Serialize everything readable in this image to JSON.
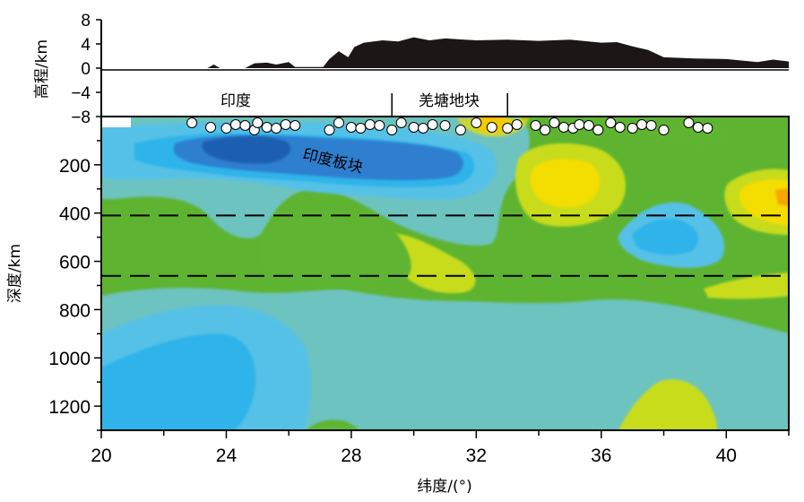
{
  "chart_data": {
    "type": "heatmap",
    "xlabel": "纬度/(°)",
    "ylabel": "深度/km",
    "xlim": [
      20,
      42
    ],
    "ylim": [
      0,
      1300
    ],
    "x_ticks": [
      20,
      24,
      28,
      32,
      36,
      40
    ],
    "y_ticks": [
      200,
      400,
      600,
      800,
      1000,
      1200
    ],
    "dashed_depths": [
      410,
      660
    ],
    "elevation": {
      "ylabel": "高程/km",
      "ylim": [
        -8,
        8
      ],
      "ticks": [
        8,
        4,
        0,
        -4,
        -8
      ],
      "profile": [
        [
          20,
          0
        ],
        [
          23.4,
          0
        ],
        [
          23.6,
          0.6
        ],
        [
          23.8,
          0
        ],
        [
          24.6,
          0
        ],
        [
          24.9,
          0.8
        ],
        [
          25.3,
          0.9
        ],
        [
          25.6,
          0.6
        ],
        [
          26.0,
          1.0
        ],
        [
          26.2,
          0.2
        ],
        [
          27.1,
          0.2
        ],
        [
          27.3,
          1.5
        ],
        [
          27.6,
          2.8
        ],
        [
          27.9,
          1.8
        ],
        [
          28.1,
          3.5
        ],
        [
          28.4,
          4.2
        ],
        [
          29.0,
          4.6
        ],
        [
          29.5,
          4.4
        ],
        [
          30.0,
          5.1
        ],
        [
          30.5,
          4.6
        ],
        [
          31.0,
          4.9
        ],
        [
          32.0,
          4.6
        ],
        [
          33.0,
          4.7
        ],
        [
          34.0,
          4.5
        ],
        [
          35.0,
          4.7
        ],
        [
          36.0,
          4.2
        ],
        [
          36.5,
          4.3
        ],
        [
          37.0,
          3.6
        ],
        [
          37.5,
          3.0
        ],
        [
          38.0,
          1.8
        ],
        [
          39.0,
          1.6
        ],
        [
          40.0,
          1.5
        ],
        [
          41.0,
          1.0
        ],
        [
          41.5,
          1.4
        ],
        [
          42.0,
          1.1
        ]
      ]
    },
    "annotations": {
      "india": "印度",
      "qiangtang": "羌塘地块",
      "indian_plate": "印度板块"
    },
    "qiangtang_bounds": [
      29.3,
      33.0
    ],
    "events_latitude": [
      22.9,
      23.5,
      24.0,
      24.3,
      24.6,
      24.9,
      25.0,
      25.3,
      25.6,
      25.9,
      26.2,
      27.3,
      27.6,
      28.0,
      28.3,
      28.6,
      28.9,
      29.3,
      29.6,
      30.0,
      30.3,
      30.6,
      31.0,
      31.5,
      32.0,
      32.5,
      33.0,
      33.3,
      33.9,
      34.2,
      34.5,
      34.8,
      35.1,
      35.3,
      35.6,
      35.9,
      36.3,
      36.6,
      37.0,
      37.3,
      37.6,
      38.0,
      38.8,
      39.1,
      39.4
    ],
    "colors": {
      "dark_blue": "#1f5fb0",
      "medium_blue": "#2f7fd0",
      "sky_blue": "#2fb4ea",
      "light_blue": "#56c1e6",
      "teal": "#6dc3c0",
      "green": "#5eb431",
      "yellow_green": "#c8dc1e",
      "yellow": "#f4dd00",
      "orange": "#f7a600",
      "terrain": "#1c1616"
    }
  }
}
